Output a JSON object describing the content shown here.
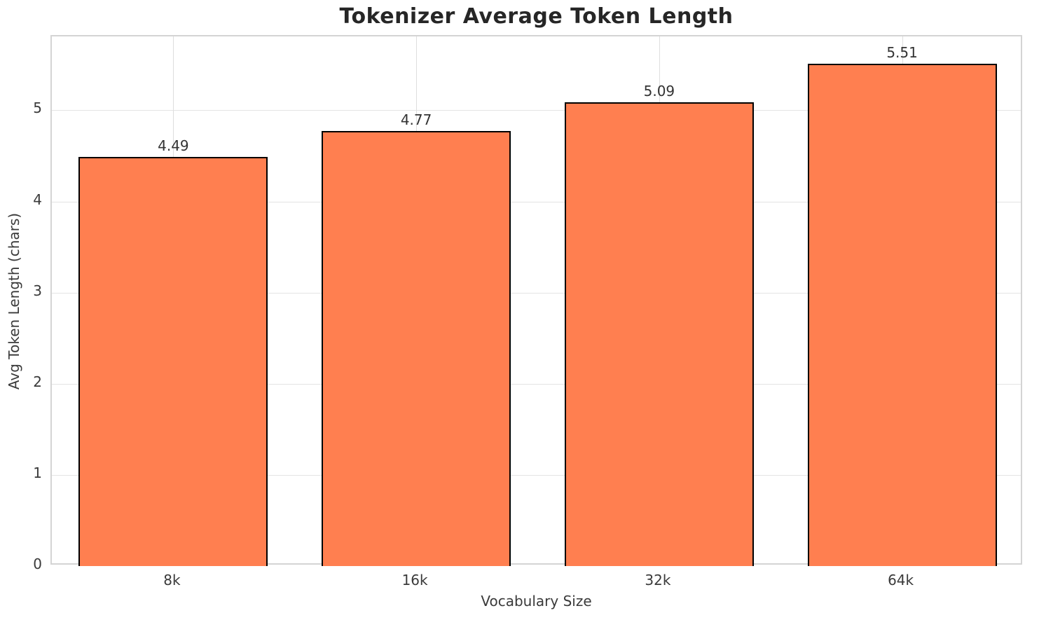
{
  "chart_data": {
    "type": "bar",
    "title": "Tokenizer Average Token Length",
    "xlabel": "Vocabulary Size",
    "ylabel": "Avg Token Length (chars)",
    "categories": [
      "8k",
      "16k",
      "32k",
      "64k"
    ],
    "values": [
      4.49,
      4.77,
      5.09,
      5.51
    ],
    "value_labels": [
      "4.49",
      "4.77",
      "5.09",
      "5.51"
    ],
    "yticks": [
      0,
      1,
      2,
      3,
      4,
      5
    ],
    "ytick_labels": [
      "0",
      "1",
      "2",
      "3",
      "4",
      "5"
    ],
    "ylim": [
      0,
      5.81
    ],
    "grid": true,
    "legend_position": "none",
    "colors": {
      "bar_fill": "#FF7F50",
      "bar_edge": "#000000",
      "grid_h": "#e4e4e4",
      "grid_v": "#dedede",
      "spine": "#d4d4d4",
      "title_text": "#262626",
      "tick_text": "#3a3a3a",
      "value_text": "#333333"
    }
  }
}
